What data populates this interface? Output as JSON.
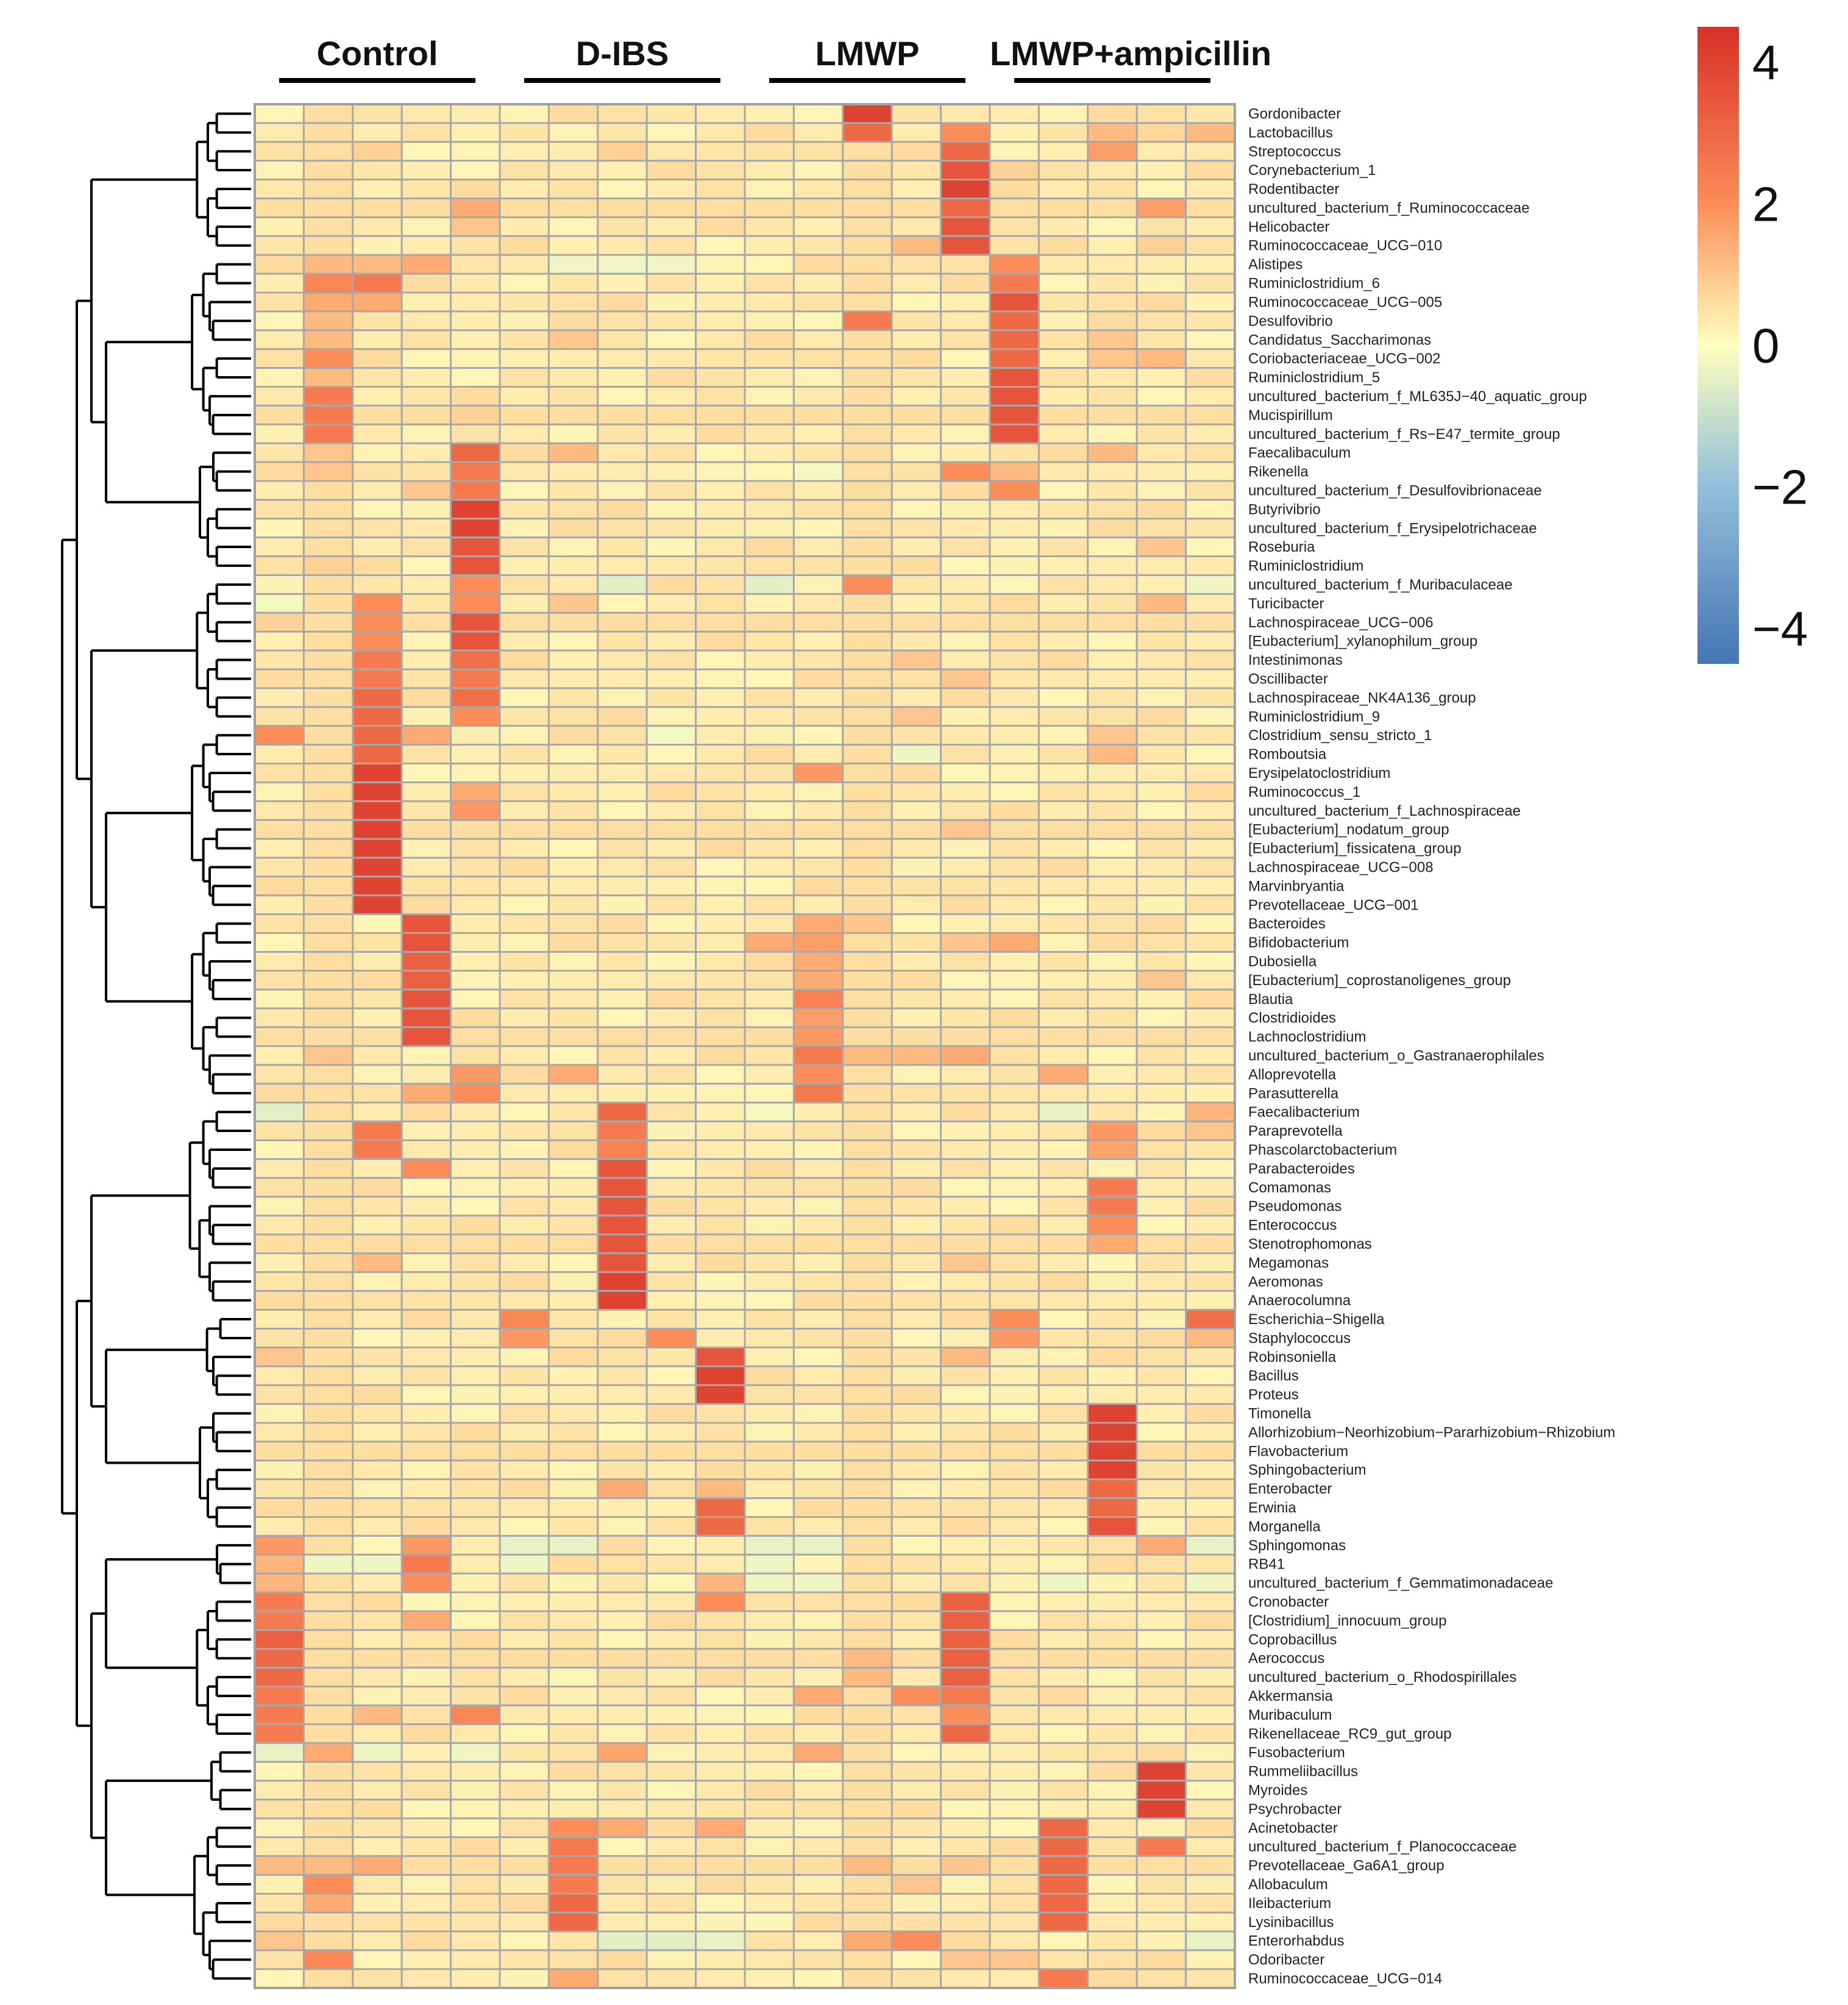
{
  "chart_data": {
    "type": "heatmap",
    "title": "",
    "groups": [
      {
        "name": "Control",
        "columns": [
          0,
          4
        ]
      },
      {
        "name": "D-IBS",
        "columns": [
          5,
          9
        ]
      },
      {
        "name": "LMWP",
        "columns": [
          10,
          14
        ]
      },
      {
        "name": "LMWP+ampicillin",
        "columns": [
          15,
          19
        ]
      }
    ],
    "n_columns": 20,
    "colorbar": {
      "min": -4.5,
      "max": 4.5,
      "ticks": [
        "4",
        "2",
        "0",
        "−2",
        "−4"
      ],
      "tick_values": [
        4,
        2,
        0,
        -2,
        -4
      ],
      "colors": {
        "low": "#4575b4",
        "lowmid": "#91bfdb",
        "mid": "#ffffbf",
        "highmid": "#fc8d59",
        "high": "#d73027"
      }
    },
    "rows": [
      "Gordonibacter",
      "Lactobacillus",
      "Streptococcus",
      "Corynebacterium_1",
      "Rodentibacter",
      "uncultured_bacterium_f_Ruminococcaceae",
      "Helicobacter",
      "Ruminococcaceae_UCG−010",
      "Alistipes",
      "Ruminiclostridium_6",
      "Ruminococcaceae_UCG−005",
      "Desulfovibrio",
      "Candidatus_Saccharimonas",
      "Coriobacteriaceae_UCG−002",
      "Ruminiclostridium_5",
      "uncultured_bacterium_f_ML635J−40_aquatic_group",
      "Mucispirillum",
      "uncultured_bacterium_f_Rs−E47_termite_group",
      "Faecalibaculum",
      "Rikenella",
      "uncultured_bacterium_f_Desulfovibrionaceae",
      "Butyrivibrio",
      "uncultured_bacterium_f_Erysipelotrichaceae",
      "Roseburia",
      "Ruminiclostridium",
      "uncultured_bacterium_f_Muribaculaceae",
      "Turicibacter",
      "Lachnospiraceae_UCG−006",
      "[Eubacterium]_xylanophilum_group",
      "Intestinimonas",
      "Oscillibacter",
      "Lachnospiraceae_NK4A136_group",
      "Ruminiclostridium_9",
      "Clostridium_sensu_stricto_1",
      "Romboutsia",
      "Erysipelatoclostridium",
      "Ruminococcus_1",
      "uncultured_bacterium_f_Lachnospiraceae",
      "[Eubacterium]_nodatum_group",
      "[Eubacterium]_fissicatena_group",
      "Lachnospiraceae_UCG−008",
      "Marvinbryantia",
      "Prevotellaceae_UCG−001",
      "Bacteroides",
      "Bifidobacterium",
      "Dubosiella",
      "[Eubacterium]_coprostanoligenes_group",
      "Blautia",
      "Clostridioides",
      "Lachnoclostridium",
      "uncultured_bacterium_o_Gastranaerophilales",
      "Alloprevotella",
      "Parasutterella",
      "Faecalibacterium",
      "Paraprevotella",
      "Phascolarctobacterium",
      "Parabacteroides",
      "Comamonas",
      "Pseudomonas",
      "Enterococcus",
      "Stenotrophomonas",
      "Megamonas",
      "Aeromonas",
      "Anaerocolumna",
      "Escherichia−Shigella",
      "Staphylococcus",
      "Robinsoniella",
      "Bacillus",
      "Proteus",
      "Timonella",
      "Allorhizobium−Neorhizobium−Pararhizobium−Rhizobium",
      "Flavobacterium",
      "Sphingobacterium",
      "Enterobacter",
      "Erwinia",
      "Morganella",
      "Sphingomonas",
      "RB41",
      "uncultured_bacterium_f_Gemmatimonadaceae",
      "Cronobacter",
      "[Clostridium]_innocuum_group",
      "Coprobacillus",
      "Aerococcus",
      "uncultured_bacterium_o_Rhodospirillales",
      "Akkermansia",
      "Muribaculum",
      "Rikenellaceae_RC9_gut_group",
      "Fusobacterium",
      "Rummeliibacillus",
      "Myroides",
      "Psychrobacter",
      "Acinetobacter",
      "uncultured_bacterium_f_Planococcaceae",
      "Prevotellaceae_Ga6A1_group",
      "Allobaculum",
      "Ileibacterium",
      "Lysinibacillus",
      "Enterorhabdus",
      "Odoribacter",
      "Ruminococcaceae_UCG−014"
    ],
    "baseline_value": 0.4,
    "cells": [
      [
        0,
        12,
        4.0
      ],
      [
        1,
        12,
        3.0
      ],
      [
        1,
        14,
        2.0
      ],
      [
        1,
        17,
        1.2
      ],
      [
        1,
        18,
        0.7
      ],
      [
        1,
        19,
        1.2
      ],
      [
        2,
        14,
        3.0
      ],
      [
        2,
        17,
        1.7
      ],
      [
        2,
        2,
        0.8
      ],
      [
        2,
        7,
        0.8
      ],
      [
        3,
        14,
        3.5
      ],
      [
        3,
        15,
        0.8
      ],
      [
        4,
        14,
        4.0
      ],
      [
        5,
        14,
        3.0
      ],
      [
        5,
        4,
        1.5
      ],
      [
        5,
        18,
        1.7
      ],
      [
        6,
        14,
        3.5
      ],
      [
        6,
        4,
        1.0
      ],
      [
        7,
        14,
        3.5
      ],
      [
        7,
        13,
        1.2
      ],
      [
        7,
        18,
        0.8
      ],
      [
        8,
        15,
        2.0
      ],
      [
        8,
        1,
        1.2
      ],
      [
        8,
        2,
        1.2
      ],
      [
        8,
        3,
        1.5
      ],
      [
        8,
        6,
        -0.3
      ],
      [
        8,
        7,
        -0.3
      ],
      [
        8,
        8,
        -0.3
      ],
      [
        9,
        15,
        2.5
      ],
      [
        9,
        1,
        2.2
      ],
      [
        9,
        2,
        2.5
      ],
      [
        10,
        15,
        3.5
      ],
      [
        10,
        1,
        1.5
      ],
      [
        10,
        2,
        1.5
      ],
      [
        11,
        15,
        3.0
      ],
      [
        11,
        12,
        2.5
      ],
      [
        11,
        1,
        1.2
      ],
      [
        12,
        15,
        3.0
      ],
      [
        12,
        1,
        1.2
      ],
      [
        12,
        6,
        1.0
      ],
      [
        12,
        17,
        1.0
      ],
      [
        13,
        15,
        3.0
      ],
      [
        13,
        1,
        2.0
      ],
      [
        13,
        17,
        1.0
      ],
      [
        13,
        18,
        1.2
      ],
      [
        14,
        15,
        3.5
      ],
      [
        14,
        1,
        1.2
      ],
      [
        15,
        15,
        3.5
      ],
      [
        15,
        1,
        2.5
      ],
      [
        16,
        15,
        3.5
      ],
      [
        16,
        1,
        2.5
      ],
      [
        16,
        4,
        0.8
      ],
      [
        17,
        15,
        3.5
      ],
      [
        17,
        1,
        2.5
      ],
      [
        18,
        4,
        3.0
      ],
      [
        18,
        1,
        1.0
      ],
      [
        18,
        6,
        1.2
      ],
      [
        18,
        17,
        1.2
      ],
      [
        19,
        4,
        2.5
      ],
      [
        19,
        1,
        1.0
      ],
      [
        19,
        14,
        2.0
      ],
      [
        19,
        15,
        1.2
      ],
      [
        19,
        11,
        -0.2
      ],
      [
        20,
        4,
        2.5
      ],
      [
        20,
        15,
        2.0
      ],
      [
        20,
        3,
        1.0
      ],
      [
        21,
        4,
        4.0
      ],
      [
        22,
        4,
        4.0
      ],
      [
        23,
        4,
        3.5
      ],
      [
        23,
        18,
        1.0
      ],
      [
        24,
        4,
        3.5
      ],
      [
        24,
        1,
        0.8
      ],
      [
        25,
        4,
        2.0
      ],
      [
        25,
        12,
        2.0
      ],
      [
        25,
        7,
        -0.5
      ],
      [
        25,
        10,
        -0.5
      ],
      [
        25,
        19,
        -0.3
      ],
      [
        26,
        2,
        2.0
      ],
      [
        26,
        4,
        2.0
      ],
      [
        26,
        0,
        -0.2
      ],
      [
        26,
        6,
        1.0
      ],
      [
        26,
        18,
        1.2
      ],
      [
        27,
        4,
        3.5
      ],
      [
        27,
        2,
        2.0
      ],
      [
        27,
        0,
        0.8
      ],
      [
        28,
        4,
        3.5
      ],
      [
        28,
        2,
        2.0
      ],
      [
        29,
        2,
        2.5
      ],
      [
        29,
        4,
        2.8
      ],
      [
        29,
        13,
        1.0
      ],
      [
        30,
        2,
        2.5
      ],
      [
        30,
        4,
        2.5
      ],
      [
        30,
        14,
        1.0
      ],
      [
        31,
        2,
        3.0
      ],
      [
        31,
        4,
        2.8
      ],
      [
        32,
        2,
        3.0
      ],
      [
        32,
        4,
        2.0
      ],
      [
        32,
        13,
        1.0
      ],
      [
        33,
        0,
        2.0
      ],
      [
        33,
        2,
        3.0
      ],
      [
        33,
        3,
        1.5
      ],
      [
        33,
        17,
        1.0
      ],
      [
        33,
        8,
        -0.2
      ],
      [
        34,
        2,
        3.0
      ],
      [
        34,
        13,
        -0.3
      ],
      [
        34,
        17,
        1.2
      ],
      [
        35,
        2,
        4.0
      ],
      [
        35,
        11,
        1.8
      ],
      [
        36,
        2,
        4.0
      ],
      [
        36,
        4,
        1.5
      ],
      [
        37,
        2,
        4.0
      ],
      [
        37,
        4,
        1.8
      ],
      [
        38,
        2,
        4.0
      ],
      [
        38,
        14,
        1.0
      ],
      [
        39,
        2,
        4.0
      ],
      [
        40,
        2,
        4.0
      ],
      [
        41,
        2,
        4.0
      ],
      [
        42,
        2,
        4.0
      ],
      [
        43,
        3,
        3.5
      ],
      [
        43,
        11,
        1.5
      ],
      [
        43,
        12,
        1.0
      ],
      [
        44,
        3,
        3.5
      ],
      [
        44,
        10,
        1.5
      ],
      [
        44,
        11,
        1.7
      ],
      [
        44,
        14,
        1.0
      ],
      [
        44,
        15,
        1.5
      ],
      [
        45,
        3,
        3.2
      ],
      [
        45,
        11,
        1.5
      ],
      [
        46,
        3,
        3.2
      ],
      [
        46,
        11,
        1.5
      ],
      [
        46,
        18,
        1.0
      ],
      [
        47,
        3,
        3.5
      ],
      [
        47,
        11,
        2.3
      ],
      [
        48,
        3,
        3.5
      ],
      [
        48,
        11,
        1.7
      ],
      [
        49,
        3,
        3.5
      ],
      [
        49,
        11,
        1.8
      ],
      [
        50,
        11,
        2.5
      ],
      [
        50,
        12,
        1.2
      ],
      [
        50,
        13,
        1.2
      ],
      [
        50,
        14,
        1.5
      ],
      [
        50,
        1,
        1.0
      ],
      [
        51,
        11,
        2.0
      ],
      [
        51,
        4,
        1.8
      ],
      [
        51,
        6,
        1.5
      ],
      [
        51,
        16,
        1.5
      ],
      [
        52,
        11,
        2.5
      ],
      [
        52,
        4,
        2.0
      ],
      [
        52,
        3,
        1.5
      ],
      [
        53,
        7,
        3.0
      ],
      [
        53,
        0,
        -0.5
      ],
      [
        53,
        16,
        -0.4
      ],
      [
        53,
        10,
        -0.2
      ],
      [
        53,
        19,
        1.3
      ],
      [
        54,
        7,
        2.5
      ],
      [
        54,
        2,
        2.5
      ],
      [
        54,
        17,
        1.8
      ],
      [
        54,
        19,
        1.0
      ],
      [
        55,
        7,
        2.3
      ],
      [
        55,
        2,
        2.5
      ],
      [
        55,
        17,
        1.6
      ],
      [
        56,
        7,
        3.5
      ],
      [
        56,
        3,
        2.0
      ],
      [
        57,
        7,
        3.5
      ],
      [
        57,
        17,
        2.5
      ],
      [
        58,
        7,
        3.5
      ],
      [
        58,
        17,
        2.5
      ],
      [
        59,
        7,
        3.5
      ],
      [
        59,
        17,
        2.0
      ],
      [
        60,
        7,
        3.5
      ],
      [
        60,
        17,
        1.5
      ],
      [
        61,
        7,
        3.5
      ],
      [
        61,
        2,
        1.2
      ],
      [
        61,
        14,
        1.0
      ],
      [
        62,
        7,
        4.0
      ],
      [
        63,
        7,
        4.0
      ],
      [
        64,
        5,
        2.2
      ],
      [
        64,
        15,
        2.0
      ],
      [
        64,
        19,
        2.8
      ],
      [
        65,
        5,
        1.8
      ],
      [
        65,
        8,
        2.0
      ],
      [
        65,
        15,
        1.8
      ],
      [
        65,
        19,
        1.2
      ],
      [
        66,
        9,
        3.5
      ],
      [
        66,
        0,
        1.0
      ],
      [
        66,
        14,
        1.2
      ],
      [
        67,
        9,
        4.0
      ],
      [
        68,
        9,
        4.0
      ],
      [
        69,
        17,
        4.0
      ],
      [
        70,
        17,
        4.0
      ],
      [
        71,
        17,
        4.0
      ],
      [
        72,
        17,
        4.0
      ],
      [
        73,
        17,
        3.0
      ],
      [
        73,
        7,
        1.5
      ],
      [
        73,
        9,
        1.2
      ],
      [
        74,
        17,
        3.0
      ],
      [
        74,
        9,
        3.0
      ],
      [
        75,
        17,
        3.5
      ],
      [
        75,
        9,
        3.0
      ],
      [
        76,
        0,
        1.8
      ],
      [
        76,
        3,
        1.8
      ],
      [
        76,
        18,
        1.5
      ],
      [
        76,
        5,
        -0.4
      ],
      [
        76,
        6,
        -0.4
      ],
      [
        76,
        10,
        -0.4
      ],
      [
        76,
        11,
        -0.4
      ],
      [
        76,
        19,
        -0.4
      ],
      [
        77,
        3,
        2.5
      ],
      [
        77,
        0,
        1.3
      ],
      [
        77,
        1,
        -0.3
      ],
      [
        77,
        2,
        -0.3
      ],
      [
        77,
        5,
        -0.3
      ],
      [
        77,
        10,
        -0.3
      ],
      [
        78,
        3,
        2.0
      ],
      [
        78,
        0,
        1.3
      ],
      [
        78,
        9,
        1.3
      ],
      [
        78,
        10,
        -0.3
      ],
      [
        78,
        11,
        -0.3
      ],
      [
        78,
        16,
        -0.3
      ],
      [
        78,
        19,
        -0.3
      ],
      [
        79,
        14,
        3.2
      ],
      [
        79,
        0,
        2.5
      ],
      [
        79,
        9,
        2.0
      ],
      [
        80,
        14,
        3.2
      ],
      [
        80,
        0,
        2.5
      ],
      [
        80,
        3,
        1.5
      ],
      [
        81,
        14,
        3.2
      ],
      [
        81,
        0,
        3.2
      ],
      [
        82,
        14,
        3.2
      ],
      [
        82,
        0,
        3.0
      ],
      [
        82,
        12,
        1.2
      ],
      [
        83,
        14,
        3.2
      ],
      [
        83,
        0,
        3.0
      ],
      [
        83,
        12,
        1.2
      ],
      [
        84,
        0,
        2.5
      ],
      [
        84,
        13,
        2.0
      ],
      [
        84,
        14,
        2.5
      ],
      [
        84,
        11,
        1.5
      ],
      [
        85,
        0,
        2.5
      ],
      [
        85,
        4,
        2.2
      ],
      [
        85,
        2,
        1.2
      ],
      [
        85,
        14,
        2.0
      ],
      [
        86,
        0,
        2.5
      ],
      [
        86,
        14,
        3.0
      ],
      [
        87,
        0,
        -0.4
      ],
      [
        87,
        2,
        -0.3
      ],
      [
        87,
        4,
        -0.3
      ],
      [
        87,
        1,
        1.5
      ],
      [
        87,
        7,
        1.6
      ],
      [
        87,
        11,
        1.5
      ],
      [
        88,
        18,
        4.0
      ],
      [
        89,
        18,
        4.0
      ],
      [
        90,
        18,
        4.0
      ],
      [
        91,
        16,
        3.0
      ],
      [
        91,
        6,
        2.0
      ],
      [
        91,
        7,
        1.5
      ],
      [
        91,
        9,
        1.5
      ],
      [
        92,
        16,
        3.0
      ],
      [
        92,
        6,
        2.5
      ],
      [
        92,
        18,
        2.5
      ],
      [
        93,
        16,
        3.0
      ],
      [
        93,
        6,
        2.5
      ],
      [
        93,
        0,
        1.2
      ],
      [
        93,
        1,
        1.2
      ],
      [
        93,
        2,
        1.5
      ],
      [
        93,
        12,
        1.2
      ],
      [
        93,
        14,
        1.0
      ],
      [
        94,
        16,
        3.0
      ],
      [
        94,
        6,
        2.5
      ],
      [
        94,
        1,
        2.0
      ],
      [
        94,
        13,
        1.0
      ],
      [
        95,
        16,
        3.0
      ],
      [
        95,
        6,
        3.0
      ],
      [
        95,
        1,
        1.5
      ],
      [
        96,
        16,
        3.0
      ],
      [
        96,
        6,
        3.0
      ],
      [
        97,
        7,
        -0.5
      ],
      [
        97,
        8,
        -0.5
      ],
      [
        97,
        9,
        -0.4
      ],
      [
        97,
        19,
        -0.4
      ],
      [
        97,
        13,
        2.0
      ],
      [
        97,
        12,
        1.5
      ],
      [
        97,
        0,
        1.0
      ],
      [
        98,
        1,
        2.2
      ],
      [
        98,
        14,
        1.0
      ],
      [
        98,
        15,
        1.0
      ],
      [
        99,
        16,
        2.5
      ],
      [
        99,
        6,
        1.5
      ]
    ]
  }
}
